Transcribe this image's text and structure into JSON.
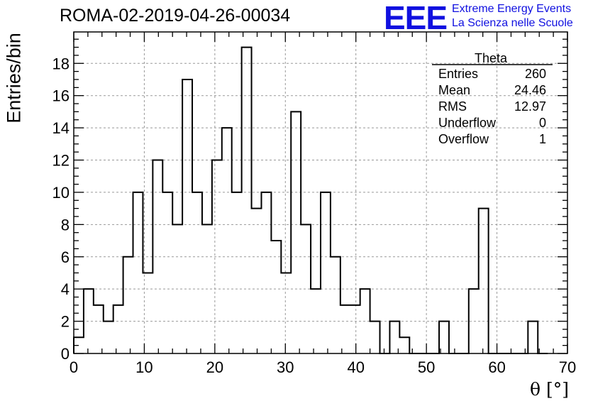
{
  "title": "ROMA-02-2019-04-26-00034",
  "logo": {
    "mark": "EEE",
    "line1": "Extreme Energy Events",
    "line2": "La Scienza nelle Scuole",
    "color": "#1010e0"
  },
  "stats_box": {
    "name": "Theta",
    "rows": [
      {
        "label": "Entries",
        "value": "260"
      },
      {
        "label": "Mean",
        "value": "24.46"
      },
      {
        "label": "RMS",
        "value": "12.97"
      },
      {
        "label": "Underflow",
        "value": "0"
      },
      {
        "label": "Overflow",
        "value": "1"
      }
    ]
  },
  "chart_data": {
    "type": "histogram",
    "title": "ROMA-02-2019-04-26-00034",
    "xlabel": "θ [°]",
    "ylabel": "Entries/bin",
    "xlim": [
      0,
      70
    ],
    "ylim": [
      0,
      19.95
    ],
    "grid": true,
    "bin_edges_start": 0,
    "bin_width": 1.4,
    "values": [
      1,
      4,
      3,
      2,
      3,
      6,
      10,
      5,
      12,
      10,
      8,
      17,
      10,
      8,
      12,
      14,
      10,
      19,
      9,
      10,
      7,
      5,
      15,
      8,
      4,
      10,
      6,
      3,
      3,
      4,
      2,
      0,
      2,
      1,
      0,
      0,
      0,
      2,
      0,
      0,
      4,
      9,
      0,
      0,
      0,
      0,
      2,
      0
    ],
    "x_ticks": [
      0,
      10,
      20,
      30,
      40,
      50,
      60,
      70
    ],
    "y_ticks": [
      0,
      2,
      4,
      6,
      8,
      10,
      12,
      14,
      16,
      18
    ]
  }
}
